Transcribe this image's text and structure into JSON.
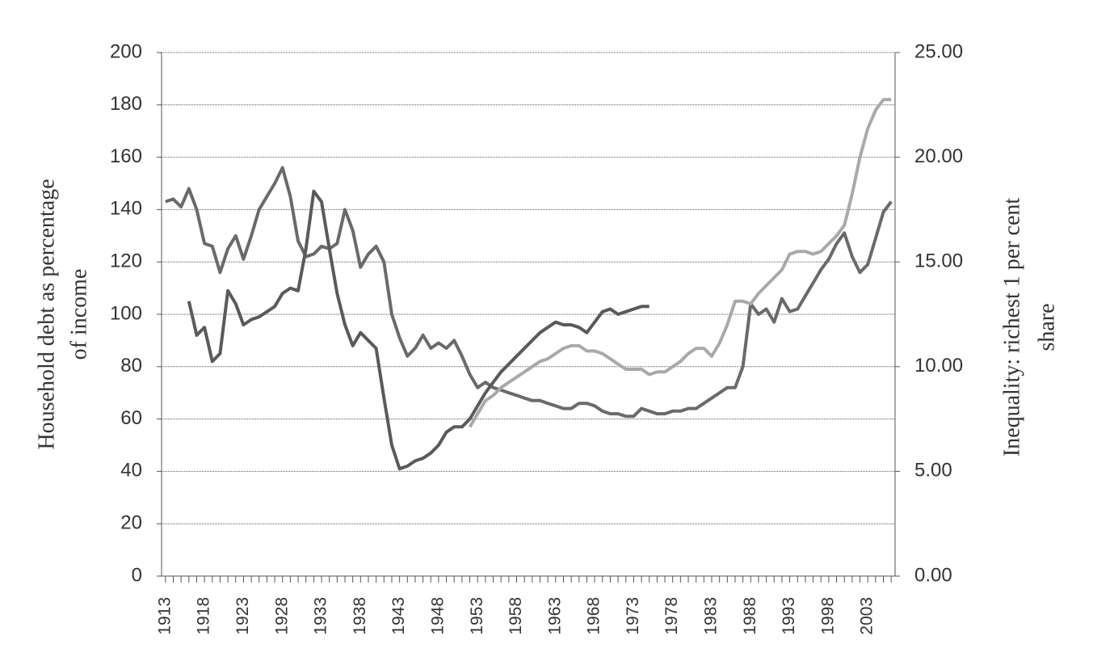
{
  "chart_data": {
    "type": "line",
    "ylabel": [
      "Household debt as percentage",
      "of income"
    ],
    "y2label": [
      "Inequality: richest 1 per cent",
      "share"
    ],
    "x": [
      1913,
      1914,
      1915,
      1916,
      1917,
      1918,
      1919,
      1920,
      1921,
      1922,
      1923,
      1924,
      1925,
      1926,
      1927,
      1928,
      1929,
      1930,
      1931,
      1932,
      1933,
      1934,
      1935,
      1936,
      1937,
      1938,
      1939,
      1940,
      1941,
      1942,
      1943,
      1944,
      1945,
      1946,
      1947,
      1948,
      1949,
      1950,
      1951,
      1952,
      1953,
      1954,
      1955,
      1956,
      1957,
      1958,
      1959,
      1960,
      1961,
      1962,
      1963,
      1964,
      1965,
      1966,
      1967,
      1968,
      1969,
      1970,
      1971,
      1972,
      1973,
      1974,
      1975,
      1976,
      1977,
      1978,
      1979,
      1980,
      1981,
      1982,
      1983,
      1984,
      1985,
      1986,
      1987,
      1988,
      1989,
      1990,
      1991,
      1992,
      1993,
      1994,
      1995,
      1996,
      1997,
      1998,
      1999,
      2000,
      2001,
      2002,
      2003,
      2004,
      2005,
      2006
    ],
    "xlim": [
      1912.5,
      2006.5
    ],
    "xticks": [
      1913,
      1918,
      1923,
      1928,
      1933,
      1938,
      1943,
      1948,
      1953,
      1958,
      1963,
      1968,
      1973,
      1978,
      1983,
      1988,
      1993,
      1998,
      2003
    ],
    "ylim": [
      0,
      200
    ],
    "yticks": [
      0,
      20,
      40,
      60,
      80,
      100,
      120,
      140,
      160,
      180,
      200
    ],
    "y2lim": [
      0,
      25
    ],
    "y2ticks": [
      {
        "value": 0,
        "label": "0.00"
      },
      {
        "value": 5,
        "label": "5.00"
      },
      {
        "value": 10,
        "label": "10.00"
      },
      {
        "value": 15,
        "label": "15.00"
      },
      {
        "value": 20,
        "label": "20.00"
      },
      {
        "value": 25,
        "label": "25.00"
      }
    ],
    "grid": true,
    "series": [
      {
        "color": "#6a6a6a",
        "axis": "y2",
        "values": [
          17.88,
          18.0,
          17.63,
          18.5,
          17.5,
          15.88,
          15.75,
          14.5,
          15.63,
          16.25,
          15.13,
          16.25,
          17.5,
          18.13,
          18.75,
          19.5,
          18.13,
          16.0,
          15.25,
          15.38,
          15.75,
          15.63,
          15.88,
          17.5,
          16.5,
          14.75,
          15.38,
          15.75,
          15.0,
          12.5,
          11.38,
          10.5,
          10.88,
          11.5,
          10.88,
          11.13,
          10.88,
          11.25,
          10.5,
          9.63,
          9.0,
          9.25,
          9.0,
          8.88,
          8.75,
          8.63,
          8.5,
          8.38,
          8.38,
          8.25,
          8.13,
          8.0,
          8.0,
          8.25,
          8.25,
          8.13,
          7.88,
          7.75,
          7.75,
          7.63,
          7.63,
          8.0,
          7.88,
          7.75,
          7.75,
          7.88,
          7.88,
          8.0,
          8.0,
          8.25,
          8.5,
          8.75,
          9.0,
          9.0,
          10.0,
          13.0,
          12.5,
          12.75,
          12.13,
          13.25,
          12.63,
          12.75,
          13.38,
          14.0,
          14.63,
          15.13,
          15.88,
          16.38,
          15.25,
          14.5,
          14.88,
          16.13,
          17.38,
          17.88
        ]
      },
      {
        "color": "#5a5a5a",
        "values": [
          null,
          null,
          null,
          105,
          92,
          95,
          82,
          85,
          109,
          104,
          96,
          98,
          99,
          101,
          103,
          108,
          110,
          109,
          125,
          147,
          143,
          125,
          108,
          96,
          88,
          93,
          90,
          87,
          68,
          50,
          41,
          42,
          44,
          45,
          47,
          50,
          55,
          57,
          57,
          60,
          65,
          70,
          74,
          78,
          81,
          84,
          87,
          90,
          93,
          95,
          97,
          96,
          96,
          95,
          93,
          97,
          101,
          102,
          100,
          101,
          102,
          103,
          103,
          null,
          null,
          null,
          null,
          null,
          null,
          null,
          null,
          null,
          null,
          null,
          null,
          null,
          null,
          null,
          null,
          null,
          null,
          null,
          null,
          null,
          null,
          null,
          null,
          null,
          null,
          null,
          null,
          null,
          null,
          null
        ]
      },
      {
        "color": "#a9a9a9",
        "values": [
          null,
          null,
          null,
          null,
          null,
          null,
          null,
          null,
          null,
          null,
          null,
          null,
          null,
          null,
          null,
          null,
          null,
          null,
          null,
          null,
          null,
          null,
          null,
          null,
          null,
          null,
          null,
          null,
          null,
          null,
          null,
          null,
          null,
          null,
          null,
          null,
          null,
          null,
          null,
          57,
          62,
          67,
          69,
          72,
          74,
          76,
          78,
          80,
          82,
          83,
          85,
          87,
          88,
          88,
          86,
          86,
          85,
          83,
          81,
          79,
          79,
          79,
          77,
          78,
          78,
          80,
          82,
          85,
          87,
          87,
          84,
          89,
          96,
          105,
          105,
          104,
          108,
          111,
          114,
          117,
          123,
          124,
          124,
          123,
          124,
          127,
          130,
          134,
          146,
          160,
          171,
          178,
          182,
          182
        ]
      }
    ]
  }
}
